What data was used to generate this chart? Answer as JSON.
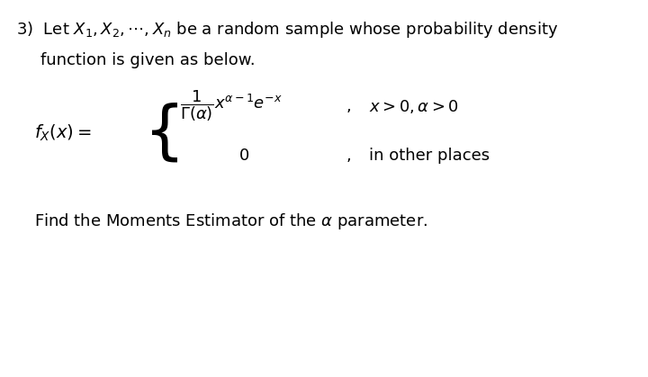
{
  "background_color": "#ffffff",
  "fig_width": 7.2,
  "fig_height": 4.19,
  "dpi": 100,
  "line1": "3)  Let $X_1, X_2, \\cdots, X_n$ be a random sample whose probability density",
  "line2": "function is given as below.",
  "fx_label": "$f_X(x) =$",
  "case1_expr": "$\\dfrac{1}{\\Gamma(\\alpha)}x^{\\alpha-1}e^{-x}$",
  "case1_comma": ",",
  "case1_cond": "$x > 0, \\alpha > 0$",
  "case2_expr": "$0$",
  "case2_comma": ",",
  "case2_cond": "in other places",
  "find_line": "Find the Moments Estimator of the $\\alpha$ parameter.",
  "font_size_text": 13,
  "text_color": "#000000"
}
